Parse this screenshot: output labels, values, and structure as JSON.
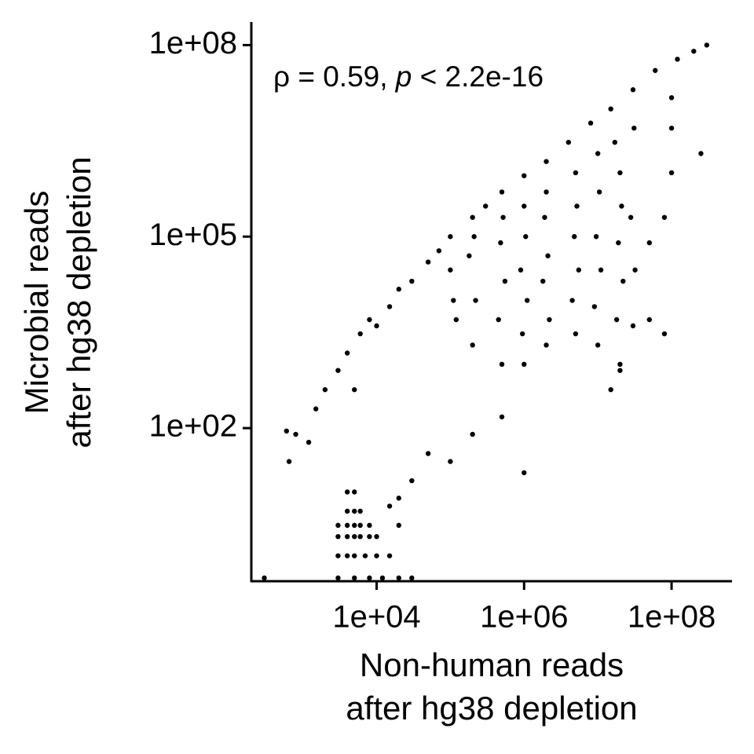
{
  "chart_data": {
    "type": "scatter",
    "annotation": [
      "ρ = 0.59, ",
      "p",
      " < 2.2e-16"
    ],
    "x_label": [
      "Non-human reads",
      "after hg38 depletion"
    ],
    "y_label": [
      "Microbial reads",
      "after hg38 depletion"
    ],
    "log_x": true,
    "log_y": true,
    "color": "#000000",
    "xlim": [
      200,
      660000000
    ],
    "ylim": [
      0.4,
      230000000
    ],
    "xticks": [
      {
        "value": 10000,
        "label": "1e+04"
      },
      {
        "value": 1000000,
        "label": "1e+06"
      },
      {
        "value": 100000000,
        "label": "1e+08"
      }
    ],
    "yticks": [
      {
        "value": 100,
        "label": "1e+02"
      },
      {
        "value": 100000,
        "label": "1e+05"
      },
      {
        "value": 100000000,
        "label": "1e+08"
      }
    ],
    "x": [
      600,
      650,
      800,
      1200,
      1500,
      2000,
      3000,
      4000,
      5000,
      6000,
      8000,
      10000,
      15000,
      20000,
      30000,
      50000,
      70000,
      100000,
      200000,
      300000,
      500000,
      1000000,
      2000000,
      4000000,
      8000000,
      15000000,
      30000000,
      60000000,
      120000000,
      200000000,
      300000000,
      100000000,
      100000000,
      250000000,
      100000000,
      80000000,
      50000000,
      50000000,
      80000000,
      20000000,
      15000000,
      1000000,
      500000,
      200000,
      100000,
      50000,
      30000,
      20000,
      15000,
      20000,
      110000,
      100000,
      120000,
      200000,
      220000,
      180000,
      210000,
      500000,
      450000,
      550000,
      480000,
      520000,
      1000000,
      950000,
      1100000,
      900000,
      1050000,
      1000000,
      2000000,
      2200000,
      1800000,
      2100000,
      1900000,
      2000000,
      5000000,
      4500000,
      5500000,
      4800000,
      5200000,
      5000000,
      10000000,
      9000000,
      11000000,
      9500000,
      10500000,
      10000000,
      20000000,
      18000000,
      22000000,
      19000000,
      21000000,
      20000000,
      17000000,
      30000000,
      32000000,
      28000000,
      31000000,
      3000,
      4000,
      5000,
      7000,
      10000,
      15000,
      3000,
      4000,
      5000,
      6000,
      8000,
      10000,
      3000,
      4000,
      5000,
      6000,
      8000,
      4000,
      5000,
      6000,
      4000,
      5000,
      300,
      3000,
      5000,
      8000,
      12000,
      20000,
      30000
    ],
    "values": [
      90,
      30,
      80,
      60,
      200,
      400,
      800,
      1500,
      400,
      3000,
      5000,
      4000,
      8000,
      15000,
      20000,
      40000,
      60000,
      100000,
      200000,
      300000,
      500000,
      900000,
      1500000,
      3000000,
      6000000,
      10000000,
      20000000,
      40000000,
      60000000,
      80000000,
      100000000,
      15000000,
      5000000,
      2000000,
      1000000,
      200000,
      80000,
      5000,
      3000,
      800,
      400,
      20,
      150,
      80,
      30,
      40,
      15,
      8,
      6,
      3,
      10000,
      30000,
      5000,
      2000,
      10000,
      50000,
      100000,
      1000,
      5000,
      20000,
      80000,
      200000,
      1000,
      3000,
      10000,
      30000,
      100000,
      300000,
      2000,
      5000,
      20000,
      50000,
      200000,
      500000,
      3000,
      10000,
      30000,
      100000,
      300000,
      1000000,
      2000,
      8000,
      30000,
      100000,
      500000,
      2000000,
      1000,
      5000,
      20000,
      80000,
      300000,
      1000000,
      3000000,
      4000,
      30000,
      200000,
      5000000,
      1,
      1,
      1,
      1,
      1,
      1,
      2,
      2,
      2,
      2,
      2,
      2,
      3,
      3,
      3,
      3,
      3,
      5,
      5,
      5,
      10,
      10,
      0.45,
      0.45,
      0.45,
      0.45,
      0.45,
      0.45,
      0.45
    ]
  }
}
